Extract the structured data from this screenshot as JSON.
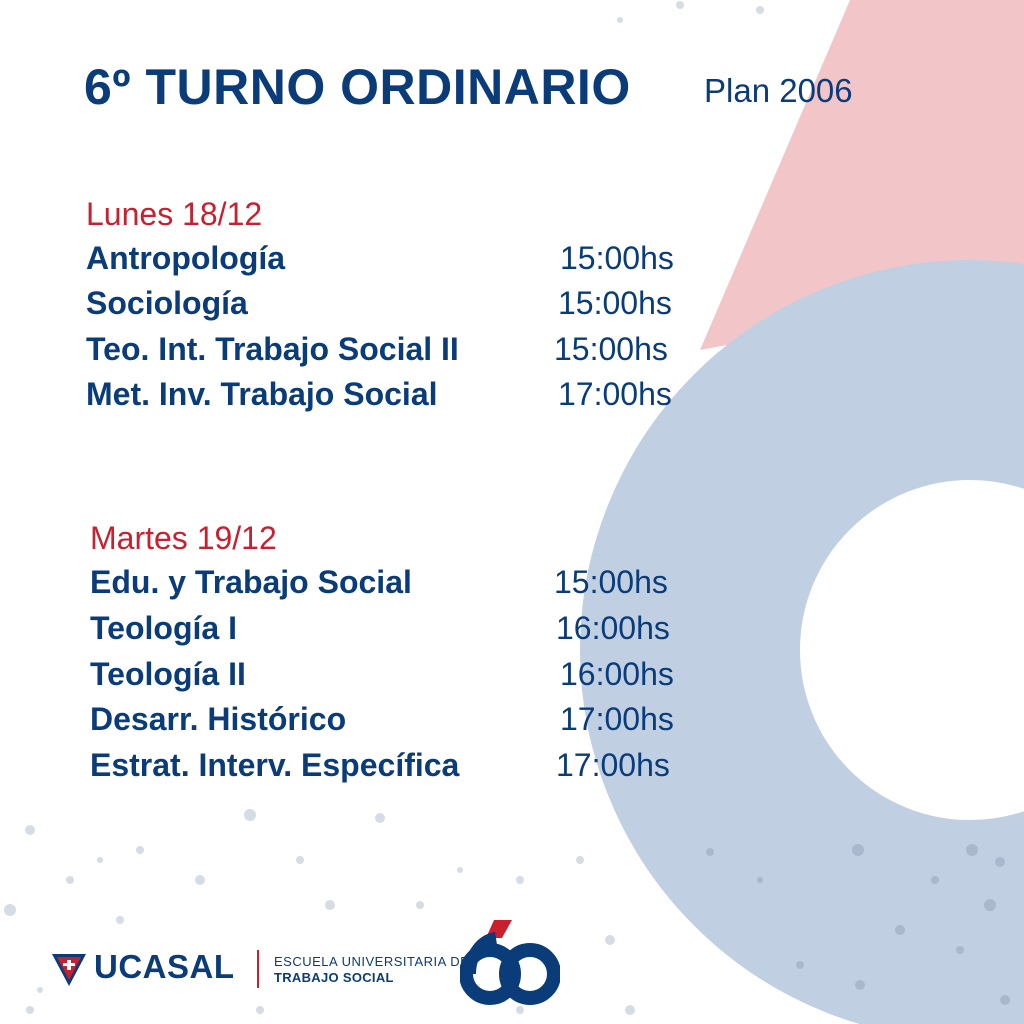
{
  "header": {
    "title": "6º TURNO ORDINARIO",
    "plan": "Plan 2006"
  },
  "days": [
    {
      "label": "Lunes 18/12",
      "exams": [
        {
          "subject": "Antropología",
          "time": "15:00hs"
        },
        {
          "subject": "Sociología",
          "time": "15:00hs"
        },
        {
          "subject": "Teo. Int. Trabajo Social II",
          "time": "15:00hs"
        },
        {
          "subject": "Met. Inv. Trabajo Social",
          "time": "17:00hs"
        }
      ]
    },
    {
      "label": "Martes 19/12",
      "exams": [
        {
          "subject": "Edu. y Trabajo Social",
          "time": "15:00hs"
        },
        {
          "subject": "Teología I",
          "time": "16:00hs"
        },
        {
          "subject": "Teología II",
          "time": "16:00hs"
        },
        {
          "subject": "Desarr. Histórico",
          "time": "17:00hs"
        },
        {
          "subject": "Estrat. Interv. Específica",
          "time": "17:00hs"
        }
      ]
    }
  ],
  "footer": {
    "brand": "UCASAL",
    "school_line1": "ESCUELA UNIVERSITARIA DE",
    "school_line2": "TRABAJO SOCIAL",
    "anniversary_icon": "sixty-anniversary-logo",
    "brand_icon": "ucasal-shield-logo"
  },
  "colors": {
    "primary_blue": "#0b3c7a",
    "accent_red": "#c8202f",
    "pink_shape": "#f2c6c9",
    "blue_shape": "#c0d0e2"
  }
}
